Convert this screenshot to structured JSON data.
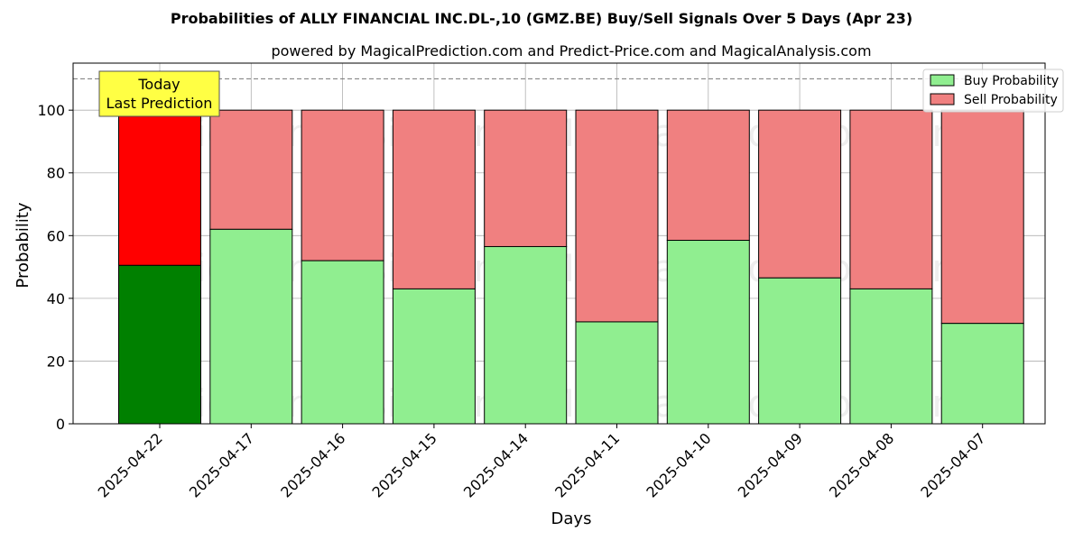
{
  "chart_data": {
    "type": "bar",
    "stacked": true,
    "title": "Probabilities of ALLY FINANCIAL INC.DL-,10 (GMZ.BE) Buy/Sell Signals Over 5 Days (Apr 23)",
    "subtitle": "powered by MagicalPrediction.com and Predict-Price.com and MagicalAnalysis.com",
    "xlabel": "Days",
    "ylabel": "Probability",
    "ylim": [
      0,
      115
    ],
    "yticks": [
      0,
      20,
      40,
      60,
      80,
      100
    ],
    "reference_line": 110,
    "grid": true,
    "legend_placement": "top-right",
    "categories": [
      "2025-04-22",
      "2025-04-17",
      "2025-04-16",
      "2025-04-15",
      "2025-04-14",
      "2025-04-11",
      "2025-04-10",
      "2025-04-09",
      "2025-04-08",
      "2025-04-07"
    ],
    "series": [
      {
        "name": "Buy Probability",
        "color": "#90ee90",
        "highlight_color": "#008000",
        "values": [
          50.5,
          62.0,
          52.0,
          43.0,
          56.5,
          32.5,
          58.5,
          46.5,
          43.0,
          32.0
        ]
      },
      {
        "name": "Sell Probability",
        "color": "#f08080",
        "highlight_color": "#ff0000",
        "values": [
          49.5,
          38.0,
          48.0,
          57.0,
          43.5,
          67.5,
          41.5,
          53.5,
          57.0,
          68.0
        ]
      }
    ],
    "annotation": {
      "lines": [
        "Today",
        "Last Prediction"
      ],
      "background": "#ffff44"
    },
    "watermarks": [
      "MagicalAnalysis.com",
      "MagicalPrediction.com"
    ]
  }
}
